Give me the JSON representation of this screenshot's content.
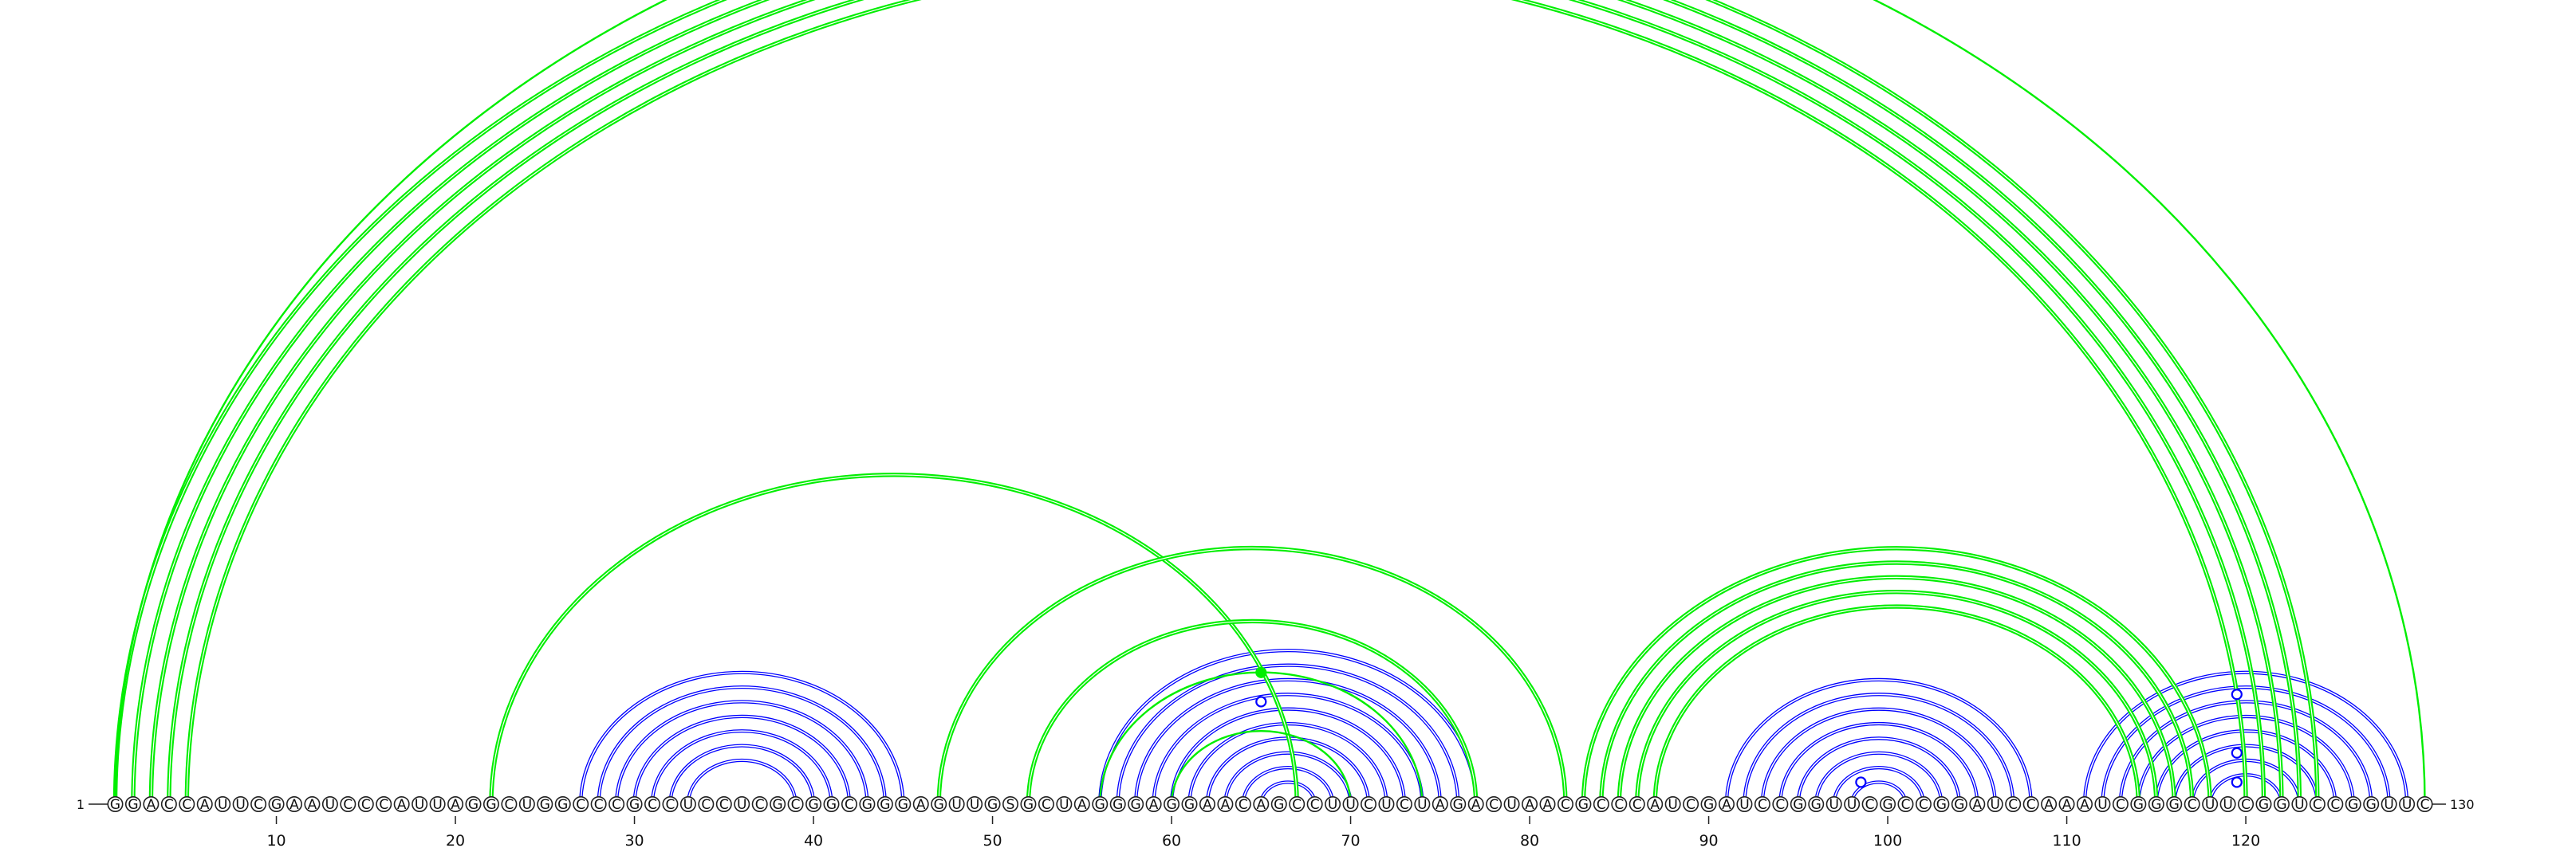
{
  "sequence": "GGACCAUUCGAAUCCCAUUAGGCUGGCCCGCCUCCUCGCGGCGGGAGUUGSGCUAGGGAGGAACAGCCUUCUCUAGACUAACGCCCAUCGAUCCGGUUCGCCGGAUCCAAAUCGGGCUUCGGUCCGGUUC",
  "start_label": "1",
  "end_label": "130",
  "ticks": [
    10,
    20,
    30,
    40,
    50,
    60,
    70,
    80,
    90,
    100,
    110,
    120
  ],
  "colors": {
    "reference_pair": "#0000ff",
    "predicted_pair": "#00ee00",
    "nucleotide_outline": "#222222"
  },
  "arc_groups": {
    "blue": {
      "color": "#0000ff",
      "pairs": [
        [
          27,
          45
        ],
        [
          28,
          44
        ],
        [
          29,
          43
        ],
        [
          30,
          42
        ],
        [
          31,
          41
        ],
        [
          32,
          40
        ],
        [
          33,
          39
        ],
        [
          56,
          77
        ],
        [
          57,
          76
        ],
        [
          58,
          75
        ],
        [
          59,
          74
        ],
        [
          60,
          73
        ],
        [
          61,
          72
        ],
        [
          62,
          71
        ],
        [
          63,
          70
        ],
        [
          64,
          69
        ],
        [
          65,
          68
        ],
        [
          91,
          108
        ],
        [
          92,
          107
        ],
        [
          93,
          106
        ],
        [
          94,
          105
        ],
        [
          95,
          104
        ],
        [
          96,
          103
        ],
        [
          97,
          102
        ],
        [
          98,
          101
        ],
        [
          111,
          129
        ],
        [
          112,
          128
        ],
        [
          113,
          127
        ],
        [
          114,
          126
        ],
        [
          115,
          125
        ],
        [
          116,
          124
        ],
        [
          117,
          123
        ],
        [
          118,
          122
        ]
      ]
    },
    "green": {
      "color": "#00ee00",
      "pairs": [
        [
          1,
          124
        ],
        [
          2,
          123
        ],
        [
          3,
          122
        ],
        [
          4,
          121
        ],
        [
          5,
          120
        ],
        [
          22,
          67
        ],
        [
          47,
          82
        ],
        [
          52,
          77
        ],
        [
          83,
          118
        ],
        [
          84,
          117
        ],
        [
          85,
          116
        ],
        [
          86,
          115
        ],
        [
          87,
          114
        ]
      ]
    }
  },
  "markers": [
    {
      "pair": [
        1,
        130
      ],
      "style": "open",
      "color": "#00ee00",
      "arc_stroke": "single"
    },
    {
      "pair": [
        56,
        74
      ],
      "style": "filled",
      "color": "#00ee00",
      "arc_stroke": "single"
    },
    {
      "pair": [
        60,
        70
      ],
      "style": "none",
      "color": "#00ee00",
      "arc_stroke": "single"
    },
    {
      "pair": [
        58,
        72
      ],
      "style": "open",
      "color": "#0000ff"
    },
    {
      "pair": [
        97,
        100
      ],
      "style": "open",
      "color": "#0000ff"
    },
    {
      "pair": [
        112,
        127
      ],
      "style": "open",
      "color": "#0000ff"
    },
    {
      "pair": [
        116,
        123
      ],
      "style": "open",
      "color": "#0000ff"
    },
    {
      "pair": [
        118,
        121
      ],
      "style": "open",
      "color": "#0000ff"
    }
  ]
}
